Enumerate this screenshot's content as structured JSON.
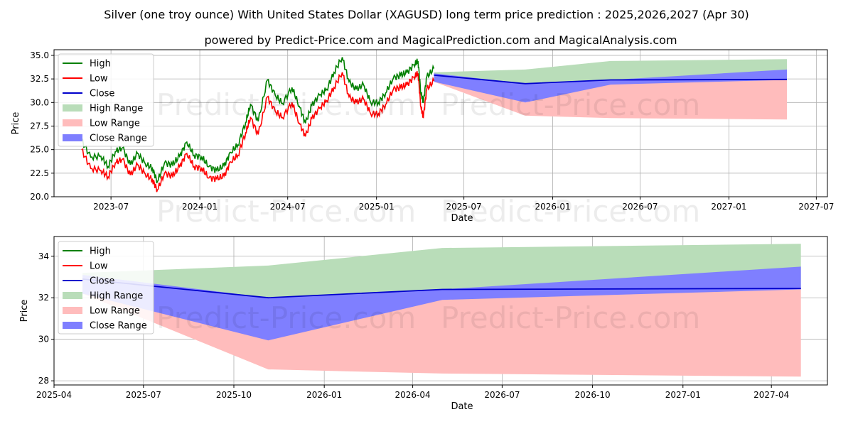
{
  "page": {
    "title": "Silver (one troy ounce) With United States Dollar (XAGUSD) long term price prediction : 2025,2026,2027 (Apr 30)",
    "subtitle": "powered by Predict-Price.com and MagicalPrediction.com and MagicalAnalysis.com",
    "watermark": "Predict-Price.com"
  },
  "colors": {
    "high": "#008000",
    "low": "#ff0000",
    "close": "#0000cc",
    "high_range": "#b9ddb9",
    "low_range": "#ffbcbc",
    "close_range": "#7f7fff",
    "grid": "#b0b0b0"
  },
  "chart_data": [
    {
      "type": "line",
      "xlabel": "Date",
      "ylabel": "Price",
      "xlim": [
        "2023-03-05",
        "2027-07-24"
      ],
      "ylim": [
        20.0,
        35.6
      ],
      "x_ticks": [
        "2023-07",
        "2024-01",
        "2024-07",
        "2025-01",
        "2025-07",
        "2026-01",
        "2026-07",
        "2027-01",
        "2027-07"
      ],
      "y_ticks": [
        "20.0",
        "22.5",
        "25.0",
        "27.5",
        "30.0",
        "32.5",
        "35.0"
      ],
      "grid": true,
      "legend_position": "top-left",
      "legend": [
        "High",
        "Low",
        "Close",
        "High Range",
        "Low Range",
        "Close Range"
      ],
      "history": {
        "dates": [
          "2023-05-01",
          "2023-05-20",
          "2023-06-10",
          "2023-06-25",
          "2023-07-10",
          "2023-07-25",
          "2023-08-10",
          "2023-08-25",
          "2023-09-10",
          "2023-09-25",
          "2023-10-05",
          "2023-10-20",
          "2023-11-05",
          "2023-11-20",
          "2023-12-05",
          "2023-12-20",
          "2024-01-05",
          "2024-01-20",
          "2024-02-05",
          "2024-02-20",
          "2024-03-05",
          "2024-03-20",
          "2024-04-05",
          "2024-04-15",
          "2024-05-01",
          "2024-05-20",
          "2024-06-05",
          "2024-06-20",
          "2024-07-10",
          "2024-07-25",
          "2024-08-07",
          "2024-08-20",
          "2024-09-05",
          "2024-09-20",
          "2024-10-05",
          "2024-10-22",
          "2024-11-05",
          "2024-11-20",
          "2024-12-05",
          "2024-12-20",
          "2025-01-05",
          "2025-01-20",
          "2025-02-05",
          "2025-02-20",
          "2025-03-05",
          "2025-03-20",
          "2025-03-28",
          "2025-04-03",
          "2025-04-08",
          "2025-04-15",
          "2025-04-30"
        ],
        "high": [
          26.0,
          24.2,
          24.3,
          23.2,
          24.8,
          25.2,
          23.4,
          24.6,
          23.5,
          23.0,
          21.6,
          23.6,
          23.4,
          24.3,
          25.8,
          24.4,
          24.2,
          23.2,
          22.8,
          23.3,
          24.7,
          25.5,
          27.9,
          29.8,
          28.0,
          32.4,
          30.8,
          29.9,
          31.6,
          29.6,
          27.8,
          29.7,
          30.8,
          31.4,
          33.2,
          34.8,
          32.2,
          31.4,
          31.9,
          30.0,
          30.0,
          31.0,
          32.6,
          32.9,
          33.2,
          34.0,
          34.4,
          31.0,
          30.0,
          32.7,
          33.6
        ],
        "low": [
          25.0,
          23.0,
          22.8,
          22.1,
          23.6,
          24.0,
          22.3,
          23.4,
          22.4,
          21.8,
          20.7,
          22.5,
          22.2,
          23.2,
          24.6,
          23.2,
          23.0,
          22.0,
          21.9,
          22.2,
          23.7,
          24.4,
          26.8,
          28.4,
          26.6,
          30.6,
          29.1,
          28.4,
          30.0,
          27.8,
          26.4,
          28.3,
          29.4,
          30.2,
          31.6,
          33.2,
          30.6,
          30.0,
          30.4,
          28.8,
          28.8,
          29.8,
          31.4,
          31.6,
          31.9,
          32.7,
          33.1,
          29.5,
          28.4,
          31.4,
          32.3
        ]
      },
      "forecast": {
        "dates": [
          "2025-04-30",
          "2025-11-05",
          "2026-05-01",
          "2027-05-01"
        ],
        "high_range": {
          "upper": [
            33.2,
            33.5,
            34.4,
            34.6
          ],
          "lower": [
            32.2,
            32.0,
            32.4,
            32.5
          ]
        },
        "low_range": {
          "upper": [
            32.2,
            32.0,
            32.4,
            32.5
          ],
          "lower": [
            32.2,
            28.6,
            28.35,
            28.2
          ]
        },
        "close_range": {
          "upper": [
            33.1,
            32.0,
            32.4,
            33.5
          ],
          "lower": [
            32.2,
            30.0,
            31.9,
            32.4
          ]
        },
        "close": [
          32.9,
          32.0,
          32.4,
          32.45
        ]
      }
    },
    {
      "type": "area",
      "xlabel": "Date",
      "ylabel": "Price",
      "xlim": [
        "2025-04-01",
        "2027-05-28"
      ],
      "ylim": [
        27.8,
        34.95
      ],
      "x_ticks": [
        "2025-04",
        "2025-07",
        "2025-10",
        "2026-01",
        "2026-04",
        "2026-07",
        "2026-10",
        "2027-01",
        "2027-04"
      ],
      "y_ticks": [
        "28",
        "30",
        "32",
        "34"
      ],
      "grid": true,
      "legend_position": "top-left",
      "legend": [
        "High",
        "Low",
        "Close",
        "High Range",
        "Low Range",
        "Close Range"
      ],
      "forecast": {
        "dates": [
          "2025-04-30",
          "2025-11-05",
          "2026-05-01",
          "2027-05-01"
        ],
        "high_range": {
          "upper": [
            33.2,
            33.55,
            34.4,
            34.6
          ],
          "lower": [
            32.2,
            32.0,
            32.4,
            32.5
          ]
        },
        "low_range": {
          "upper": [
            32.2,
            32.0,
            32.4,
            32.5
          ],
          "lower": [
            32.2,
            28.55,
            28.35,
            28.2
          ]
        },
        "close_range": {
          "upper": [
            33.1,
            32.0,
            32.4,
            33.5
          ],
          "lower": [
            32.2,
            29.95,
            31.9,
            32.4
          ]
        },
        "close": [
          32.9,
          32.0,
          32.4,
          32.45
        ]
      }
    }
  ]
}
